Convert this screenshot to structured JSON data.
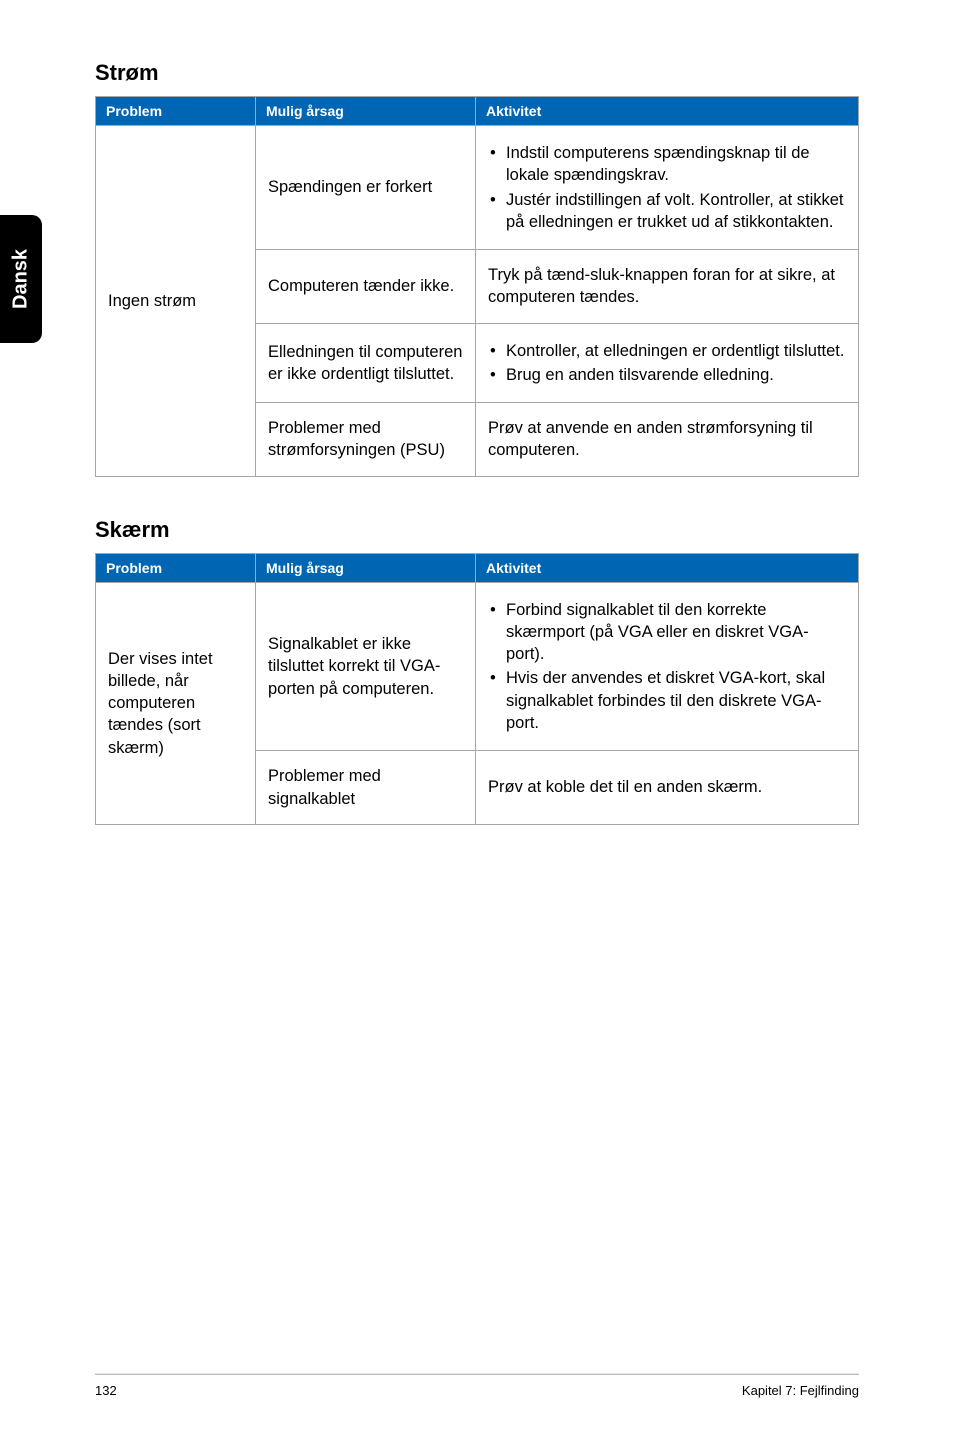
{
  "side_tab": "Dansk",
  "sections": {
    "power": {
      "title": "Strøm",
      "headers": {
        "problem": "Problem",
        "cause": "Mulig årsag",
        "action": "Aktivitet"
      },
      "problem": "Ingen strøm",
      "rows": [
        {
          "cause": "Spændingen er forkert",
          "actions": [
            "Indstil computerens spændingsknap til de lokale spændingskrav.",
            "Justér indstillingen af volt. Kontroller, at stikket på elledningen er trukket ud af stikkontakten."
          ]
        },
        {
          "cause": "Computeren tænder ikke.",
          "action_text": "Tryk på tænd-sluk-knappen foran for at sikre, at computeren tændes."
        },
        {
          "cause": "Elledningen til computeren er ikke ordentligt tilsluttet.",
          "actions": [
            "Kontroller, at elledningen er ordentligt tilsluttet.",
            "Brug en anden tilsvarende elledning."
          ]
        },
        {
          "cause": "Problemer med strømforsyningen (PSU)",
          "action_text": "Prøv at anvende en anden strømforsyning til computeren."
        }
      ]
    },
    "display": {
      "title": "Skærm",
      "headers": {
        "problem": "Problem",
        "cause": "Mulig årsag",
        "action": "Aktivitet"
      },
      "problem": "Der vises intet billede, når computeren tændes (sort skærm)",
      "rows": [
        {
          "cause": "Signalkablet er ikke tilsluttet korrekt til VGA-porten på computeren.",
          "actions": [
            "Forbind signalkablet til den korrekte skærmport (på VGA eller en diskret VGA-port).",
            "Hvis der anvendes et diskret VGA-kort, skal signalkablet forbindes til den diskrete VGA-port."
          ]
        },
        {
          "cause": "Problemer med signalkablet",
          "action_text": "Prøv at koble det til en anden skærm."
        }
      ]
    }
  },
  "footer": {
    "page_number": "132",
    "chapter": "Kapitel 7: Fejlfinding"
  },
  "colors": {
    "header_bg": "#0066b3",
    "header_text": "#ffffff",
    "border": "#a6a6a6",
    "side_tab_bg": "#000000",
    "side_tab_text": "#ffffff",
    "background": "#ffffff"
  }
}
